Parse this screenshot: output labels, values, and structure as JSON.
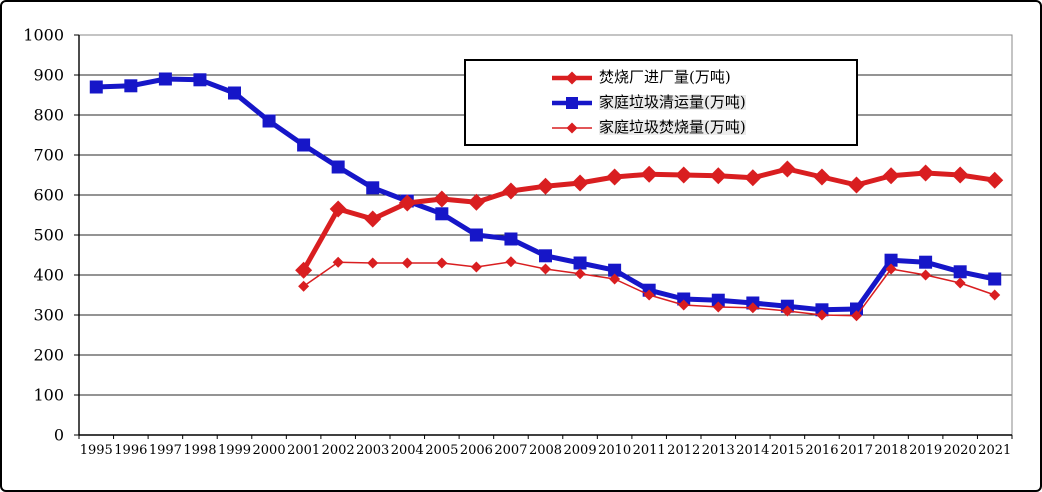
{
  "frame": {
    "background": "#ffffff",
    "border_color": "#000000"
  },
  "colors": {
    "red": "#d91e20",
    "blue": "#1616c8",
    "axis": "#000000",
    "grid": "#2a2a2a",
    "plot_border": "#888888",
    "legend_row_highlight": "#ebebeb"
  },
  "chart_data": {
    "type": "line",
    "title": "",
    "xlabel": "",
    "ylabel": "",
    "x": [
      "1995",
      "1996",
      "1997",
      "1998",
      "1999",
      "2000",
      "2001",
      "2002",
      "2003",
      "2004",
      "2005",
      "2006",
      "2007",
      "2008",
      "2009",
      "2010",
      "2011",
      "2012",
      "2013",
      "2014",
      "2015",
      "2016",
      "2017",
      "2018",
      "2019",
      "2020",
      "2021"
    ],
    "yticks": [
      0,
      100,
      200,
      300,
      400,
      500,
      600,
      700,
      800,
      900,
      1000
    ],
    "ylim": [
      0,
      1000
    ],
    "grid": true,
    "legend_position": "top-center",
    "series": [
      {
        "name": "焚烧厂进厂量(万吨)",
        "color": "#d91e20",
        "marker": "diamond-large",
        "line_width": 5,
        "values": [
          null,
          null,
          null,
          null,
          null,
          null,
          412,
          565,
          540,
          580,
          590,
          582,
          610,
          622,
          630,
          645,
          652,
          650,
          648,
          643,
          665,
          645,
          625,
          648,
          655,
          650,
          637
        ]
      },
      {
        "name": "家庭垃圾清运量(万吨)",
        "color": "#1616c8",
        "marker": "square",
        "line_width": 5,
        "values": [
          870,
          873,
          890,
          888,
          855,
          785,
          725,
          670,
          618,
          585,
          553,
          500,
          490,
          448,
          430,
          412,
          362,
          340,
          337,
          330,
          322,
          313,
          315,
          437,
          432,
          408,
          390
        ]
      },
      {
        "name": "家庭垃圾焚烧量(万吨)",
        "color": "#d91e20",
        "marker": "diamond-small",
        "line_width": 1.5,
        "values": [
          null,
          null,
          null,
          null,
          null,
          null,
          372,
          432,
          430,
          430,
          430,
          420,
          433,
          415,
          403,
          390,
          350,
          325,
          320,
          318,
          310,
          300,
          298,
          415,
          400,
          380,
          350
        ]
      }
    ]
  }
}
